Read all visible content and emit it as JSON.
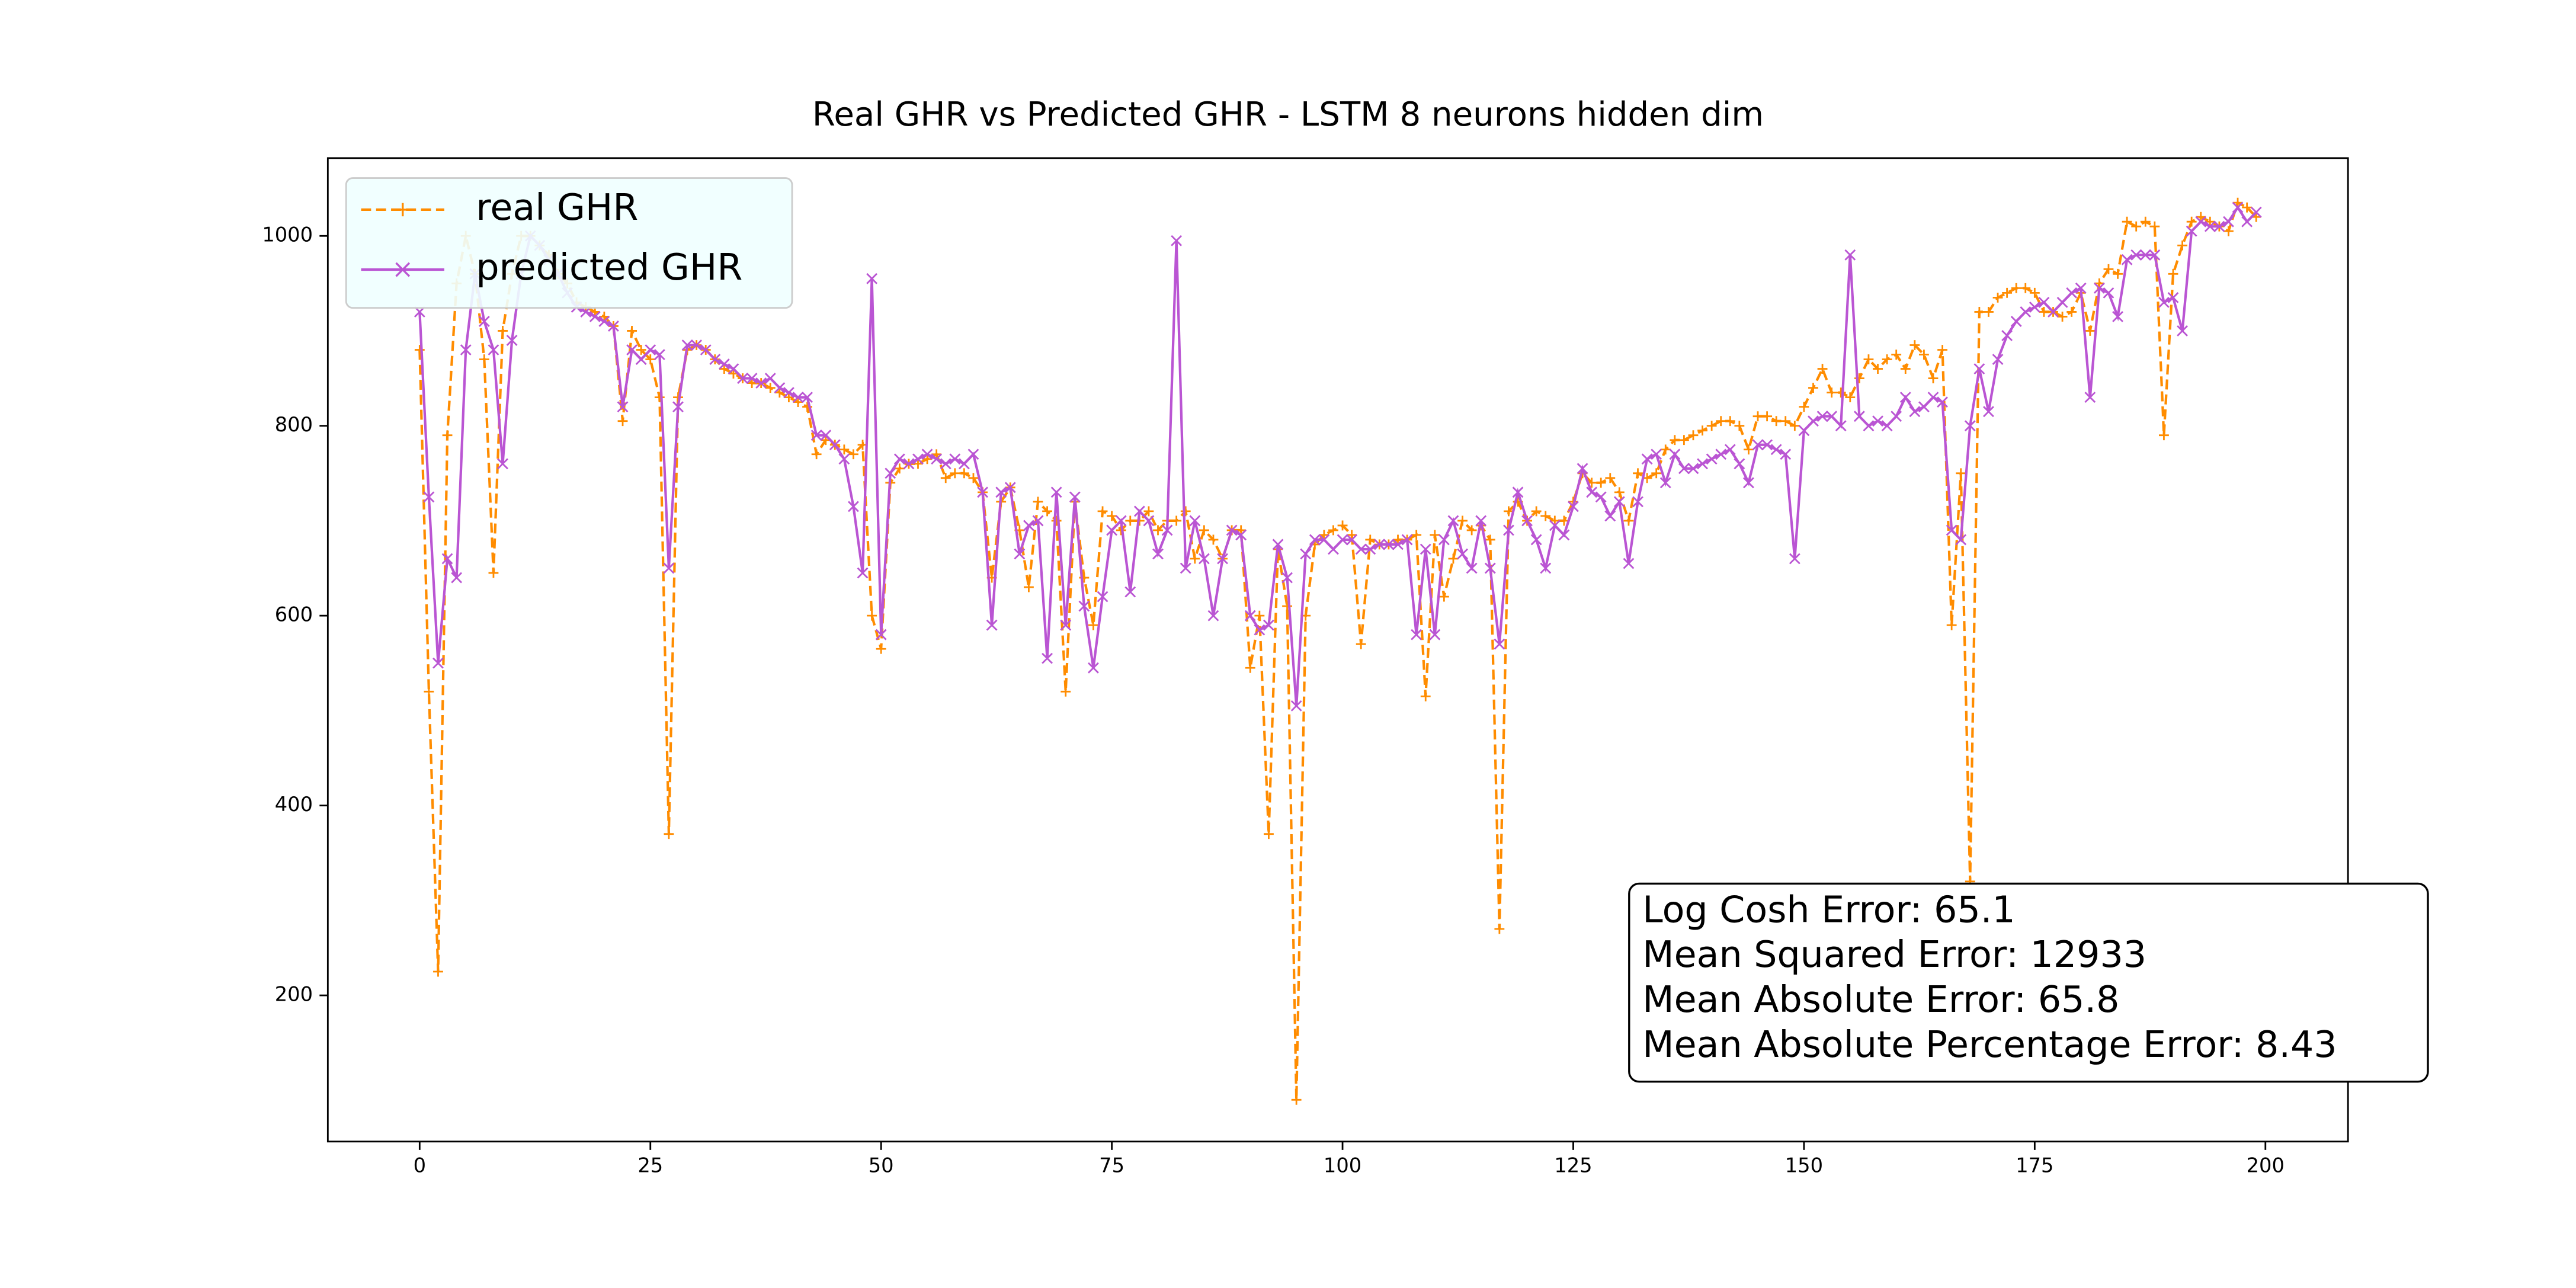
{
  "chart_data": {
    "type": "line",
    "title": "Real GHR vs Predicted GHR - LSTM 8 neurons hidden dim",
    "x": [
      0,
      1,
      2,
      3,
      4,
      5,
      6,
      7,
      8,
      9,
      10,
      11,
      12,
      13,
      14,
      15,
      16,
      17,
      18,
      19,
      20,
      21,
      22,
      23,
      24,
      25,
      26,
      27,
      28,
      29,
      30,
      31,
      32,
      33,
      34,
      35,
      36,
      37,
      38,
      39,
      40,
      41,
      42,
      43,
      44,
      45,
      46,
      47,
      48,
      49,
      50,
      51,
      52,
      53,
      54,
      55,
      56,
      57,
      58,
      59,
      60,
      61,
      62,
      63,
      64,
      65,
      66,
      67,
      68,
      69,
      70,
      71,
      72,
      73,
      74,
      75,
      76,
      77,
      78,
      79,
      80,
      81,
      82,
      83,
      84,
      85,
      86,
      87,
      88,
      89,
      90,
      91,
      92,
      93,
      94,
      95,
      96,
      97,
      98,
      99,
      100,
      101,
      102,
      103,
      104,
      105,
      106,
      107,
      108,
      109,
      110,
      111,
      112,
      113,
      114,
      115,
      116,
      117,
      118,
      119,
      120,
      121,
      122,
      123,
      124,
      125,
      126,
      127,
      128,
      129,
      130,
      131,
      132,
      133,
      134,
      135,
      136,
      137,
      138,
      139,
      140,
      141,
      142,
      143,
      144,
      145,
      146,
      147,
      148,
      149,
      150,
      151,
      152,
      153,
      154,
      155,
      156,
      157,
      158,
      159,
      160,
      161,
      162,
      163,
      164,
      165,
      166,
      167,
      168,
      169,
      170,
      171,
      172,
      173,
      174,
      175,
      176,
      177,
      178,
      179,
      180,
      181,
      182,
      183,
      184,
      185,
      186,
      187,
      188,
      189,
      190,
      191,
      192,
      193,
      194,
      195,
      196,
      197,
      198,
      199
    ],
    "series": [
      {
        "name": "real GHR",
        "color": "#ff8c00",
        "linestyle": "dashed",
        "marker": "+",
        "values": [
          880,
          520,
          225,
          790,
          950,
          1000,
          960,
          870,
          645,
          900,
          960,
          1000,
          1000,
          990,
          980,
          960,
          950,
          930,
          925,
          920,
          915,
          905,
          805,
          900,
          880,
          870,
          830,
          370,
          830,
          880,
          885,
          880,
          870,
          860,
          855,
          850,
          845,
          845,
          840,
          835,
          830,
          825,
          820,
          770,
          785,
          780,
          775,
          770,
          780,
          600,
          565,
          740,
          755,
          760,
          760,
          765,
          770,
          745,
          750,
          750,
          745,
          730,
          640,
          720,
          735,
          690,
          630,
          720,
          710,
          700,
          520,
          720,
          640,
          590,
          710,
          705,
          690,
          700,
          700,
          710,
          690,
          700,
          700,
          710,
          660,
          690,
          680,
          660,
          690,
          690,
          545,
          600,
          370,
          670,
          610,
          90,
          600,
          675,
          685,
          690,
          695,
          685,
          570,
          680,
          675,
          675,
          680,
          680,
          685,
          515,
          685,
          620,
          660,
          700,
          690,
          695,
          680,
          270,
          710,
          720,
          700,
          710,
          705,
          700,
          700,
          720,
          750,
          740,
          740,
          745,
          730,
          700,
          750,
          745,
          750,
          775,
          785,
          785,
          790,
          795,
          800,
          805,
          805,
          800,
          775,
          810,
          810,
          805,
          805,
          800,
          820,
          840,
          860,
          835,
          835,
          830,
          850,
          870,
          860,
          870,
          875,
          860,
          885,
          875,
          850,
          880,
          590,
          750,
          320,
          920,
          920,
          935,
          940,
          945,
          945,
          940,
          920,
          920,
          915,
          920,
          940,
          900,
          950,
          965,
          960,
          1015,
          1010,
          1015,
          1010,
          790,
          960,
          990,
          1015,
          1020,
          1015,
          1010,
          1005,
          1035,
          1030,
          1020
        ]
      },
      {
        "name": "predicted GHR",
        "color": "#ba55d3",
        "linestyle": "solid",
        "marker": "x",
        "values": [
          920,
          725,
          550,
          660,
          640,
          880,
          960,
          910,
          880,
          760,
          890,
          960,
          1000,
          990,
          975,
          960,
          940,
          925,
          920,
          915,
          910,
          905,
          820,
          880,
          870,
          880,
          875,
          650,
          820,
          885,
          885,
          880,
          870,
          865,
          860,
          850,
          850,
          845,
          850,
          840,
          835,
          830,
          830,
          790,
          790,
          780,
          765,
          715,
          645,
          955,
          580,
          750,
          765,
          760,
          765,
          770,
          765,
          760,
          765,
          760,
          770,
          730,
          590,
          730,
          735,
          665,
          695,
          700,
          555,
          730,
          590,
          725,
          610,
          545,
          620,
          690,
          700,
          625,
          710,
          700,
          665,
          690,
          995,
          650,
          700,
          660,
          600,
          660,
          690,
          685,
          600,
          585,
          590,
          675,
          640,
          505,
          665,
          680,
          680,
          670,
          680,
          680,
          670,
          670,
          675,
          675,
          675,
          680,
          580,
          670,
          580,
          680,
          700,
          665,
          650,
          700,
          650,
          570,
          690,
          730,
          700,
          680,
          650,
          695,
          685,
          715,
          755,
          730,
          725,
          705,
          720,
          655,
          720,
          765,
          770,
          740,
          770,
          755,
          755,
          760,
          765,
          770,
          775,
          760,
          740,
          780,
          780,
          775,
          770,
          660,
          795,
          805,
          810,
          810,
          800,
          980,
          810,
          800,
          805,
          800,
          810,
          830,
          815,
          820,
          830,
          825,
          690,
          680,
          800,
          860,
          815,
          870,
          895,
          910,
          920,
          925,
          930,
          920,
          930,
          940,
          945,
          830,
          945,
          940,
          915,
          975,
          980,
          980,
          980,
          930,
          935,
          900,
          1005,
          1015,
          1010,
          1010,
          1015,
          1030,
          1015,
          1025
        ]
      }
    ],
    "xlim": [
      -9.95,
      208.95
    ],
    "ylim": [
      46,
      1082
    ],
    "xticks": [
      0,
      25,
      50,
      75,
      100,
      125,
      150,
      175,
      200
    ],
    "yticks": [
      200,
      400,
      600,
      800,
      1000
    ],
    "legend": "upper left",
    "annotations": [
      "Log Cosh Error: 65.1",
      "Mean Squared Error: 12933",
      "Mean Absolute Error: 65.8",
      "Mean Absolute Percentage Error: 8.43"
    ]
  }
}
